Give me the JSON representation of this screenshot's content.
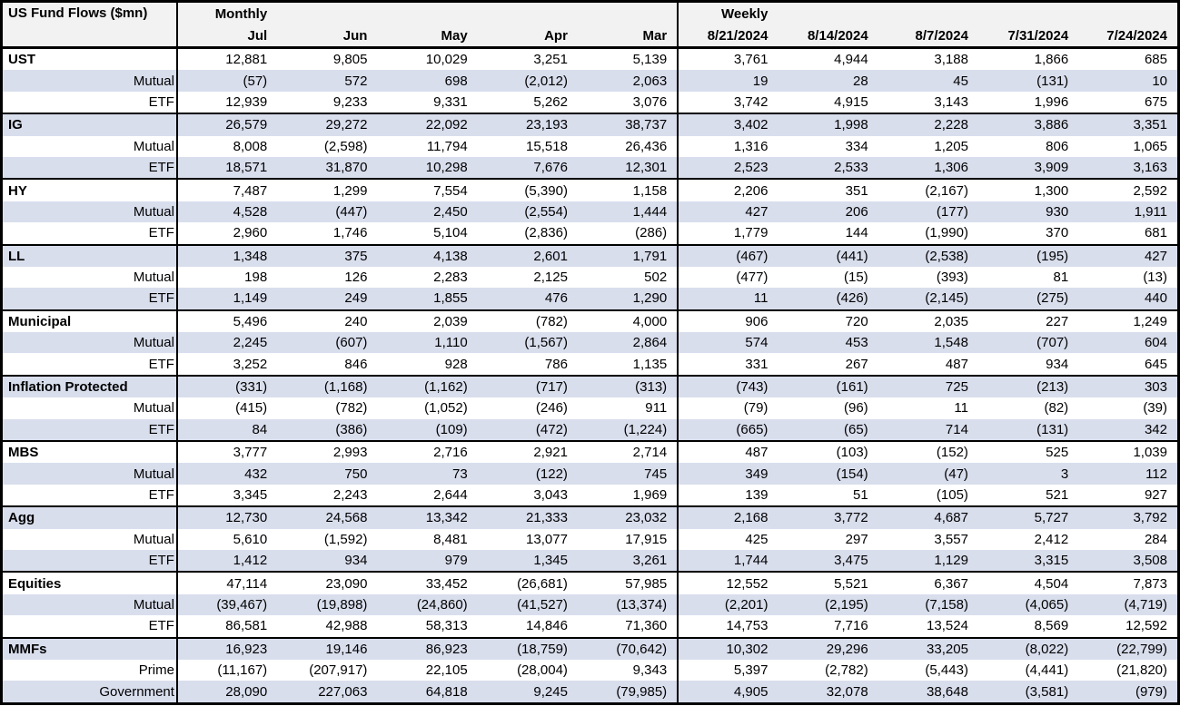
{
  "table": {
    "title": "US Fund Flows ($mn)",
    "monthly_label": "Monthly",
    "weekly_label": "Weekly"
  },
  "colors": {
    "stripe": "#D9DEED",
    "header_bg": "#F2F2F2",
    "border": "#000000"
  },
  "chart_data": {
    "type": "table",
    "title": "US Fund Flows ($mn)",
    "units": "$mn",
    "column_groups": {
      "monthly": "Monthly",
      "weekly": "Weekly"
    },
    "columns": [
      "Jul",
      "Jun",
      "May",
      "Apr",
      "Mar",
      "8/21/2024",
      "8/14/2024",
      "8/7/2024",
      "7/31/2024",
      "7/24/2024"
    ],
    "negative_format": "parentheses",
    "rows": [
      {
        "label": "UST",
        "level": "total",
        "values": [
          12881,
          9805,
          10029,
          3251,
          5139,
          3761,
          4944,
          3188,
          1866,
          685
        ]
      },
      {
        "label": "Mutual",
        "level": "sub",
        "values": [
          -57,
          572,
          698,
          -2012,
          2063,
          19,
          28,
          45,
          -131,
          10
        ]
      },
      {
        "label": "ETF",
        "level": "sub",
        "values": [
          12939,
          9233,
          9331,
          5262,
          3076,
          3742,
          4915,
          3143,
          1996,
          675
        ]
      },
      {
        "label": "IG",
        "level": "total",
        "values": [
          26579,
          29272,
          22092,
          23193,
          38737,
          3402,
          1998,
          2228,
          3886,
          3351
        ]
      },
      {
        "label": "Mutual",
        "level": "sub",
        "values": [
          8008,
          -2598,
          11794,
          15518,
          26436,
          1316,
          334,
          1205,
          806,
          1065
        ]
      },
      {
        "label": "ETF",
        "level": "sub",
        "values": [
          18571,
          31870,
          10298,
          7676,
          12301,
          2523,
          2533,
          1306,
          3909,
          3163
        ]
      },
      {
        "label": "HY",
        "level": "total",
        "values": [
          7487,
          1299,
          7554,
          -5390,
          1158,
          2206,
          351,
          -2167,
          1300,
          2592
        ]
      },
      {
        "label": "Mutual",
        "level": "sub",
        "values": [
          4528,
          -447,
          2450,
          -2554,
          1444,
          427,
          206,
          -177,
          930,
          1911
        ]
      },
      {
        "label": "ETF",
        "level": "sub",
        "values": [
          2960,
          1746,
          5104,
          -2836,
          -286,
          1779,
          144,
          -1990,
          370,
          681
        ]
      },
      {
        "label": "LL",
        "level": "total",
        "values": [
          1348,
          375,
          4138,
          2601,
          1791,
          -467,
          -441,
          -2538,
          -195,
          427
        ]
      },
      {
        "label": "Mutual",
        "level": "sub",
        "values": [
          198,
          126,
          2283,
          2125,
          502,
          -477,
          -15,
          -393,
          81,
          -13
        ]
      },
      {
        "label": "ETF",
        "level": "sub",
        "values": [
          1149,
          249,
          1855,
          476,
          1290,
          11,
          -426,
          -2145,
          -275,
          440
        ]
      },
      {
        "label": "Municipal",
        "level": "total",
        "values": [
          5496,
          240,
          2039,
          -782,
          4000,
          906,
          720,
          2035,
          227,
          1249
        ]
      },
      {
        "label": "Mutual",
        "level": "sub",
        "values": [
          2245,
          -607,
          1110,
          -1567,
          2864,
          574,
          453,
          1548,
          -707,
          604
        ]
      },
      {
        "label": "ETF",
        "level": "sub",
        "values": [
          3252,
          846,
          928,
          786,
          1135,
          331,
          267,
          487,
          934,
          645
        ]
      },
      {
        "label": "Inflation Protected",
        "level": "total",
        "values": [
          -331,
          -1168,
          -1162,
          -717,
          -313,
          -743,
          -161,
          725,
          -213,
          303
        ]
      },
      {
        "label": "Mutual",
        "level": "sub",
        "values": [
          -415,
          -782,
          -1052,
          -246,
          911,
          -79,
          -96,
          11,
          -82,
          -39
        ]
      },
      {
        "label": "ETF",
        "level": "sub",
        "values": [
          84,
          -386,
          -109,
          -472,
          -1224,
          -665,
          -65,
          714,
          -131,
          342
        ]
      },
      {
        "label": "MBS",
        "level": "total",
        "values": [
          3777,
          2993,
          2716,
          2921,
          2714,
          487,
          -103,
          -152,
          525,
          1039
        ]
      },
      {
        "label": "Mutual",
        "level": "sub",
        "values": [
          432,
          750,
          73,
          -122,
          745,
          349,
          -154,
          -47,
          3,
          112
        ]
      },
      {
        "label": "ETF",
        "level": "sub",
        "values": [
          3345,
          2243,
          2644,
          3043,
          1969,
          139,
          51,
          -105,
          521,
          927
        ]
      },
      {
        "label": "Agg",
        "level": "total",
        "values": [
          12730,
          24568,
          13342,
          21333,
          23032,
          2168,
          3772,
          4687,
          5727,
          3792
        ]
      },
      {
        "label": "Mutual",
        "level": "sub",
        "values": [
          5610,
          -1592,
          8481,
          13077,
          17915,
          425,
          297,
          3557,
          2412,
          284
        ]
      },
      {
        "label": "ETF",
        "level": "sub",
        "values": [
          1412,
          934,
          979,
          1345,
          3261,
          1744,
          3475,
          1129,
          3315,
          3508
        ]
      },
      {
        "label": "Equities",
        "level": "total",
        "values": [
          47114,
          23090,
          33452,
          -26681,
          57985,
          12552,
          5521,
          6367,
          4504,
          7873
        ]
      },
      {
        "label": "Mutual",
        "level": "sub",
        "values": [
          -39467,
          -19898,
          -24860,
          -41527,
          -13374,
          -2201,
          -2195,
          -7158,
          -4065,
          -4719
        ]
      },
      {
        "label": "ETF",
        "level": "sub",
        "values": [
          86581,
          42988,
          58313,
          14846,
          71360,
          14753,
          7716,
          13524,
          8569,
          12592
        ]
      },
      {
        "label": "MMFs",
        "level": "total",
        "values": [
          16923,
          19146,
          86923,
          -18759,
          -70642,
          10302,
          29296,
          33205,
          -8022,
          -22799
        ]
      },
      {
        "label": "Prime",
        "level": "sub",
        "values": [
          -11167,
          -207917,
          22105,
          -28004,
          9343,
          5397,
          -2782,
          -5443,
          -4441,
          -21820
        ]
      },
      {
        "label": "Government",
        "level": "sub",
        "values": [
          28090,
          227063,
          64818,
          9245,
          -79985,
          4905,
          32078,
          38648,
          -3581,
          -979
        ]
      }
    ]
  }
}
